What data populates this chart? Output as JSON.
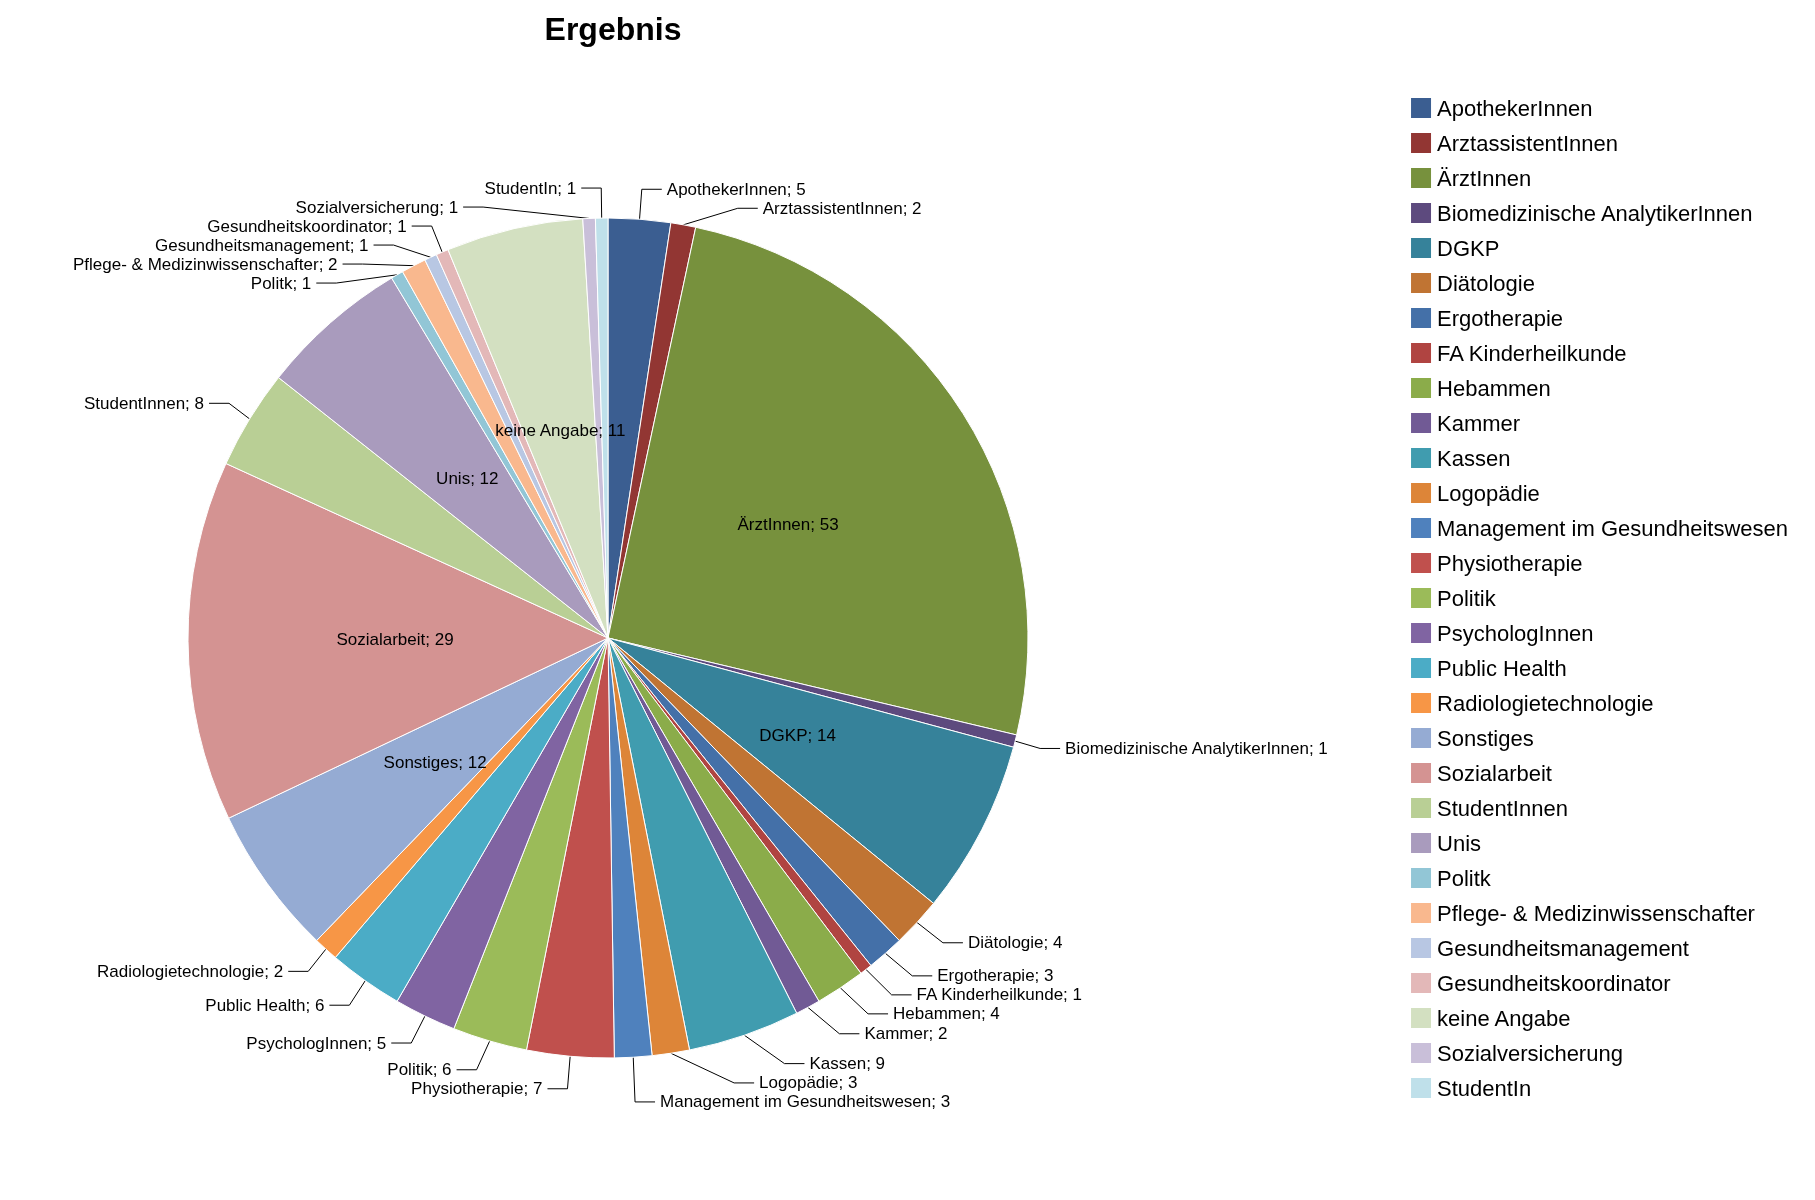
{
  "chart_data": {
    "type": "pie",
    "title": "Ergebnis",
    "legend": "right",
    "value_labels": [
      "ApothekerInnen; 5",
      "ArztassistentInnen; 2",
      "ÄrztInnen; 53",
      "Biomedizinische AnalytikerInnen; 1",
      "DGKP; 14",
      "Diätologie; 4",
      "Ergotherapie; 3",
      "FA Kinderheilkunde; 1",
      "Hebammen; 4",
      "Kammer; 2",
      "Kassen; 9",
      "Logopädie; 3",
      "Management im Gesundheitswesen; 3",
      "Physiotherapie; 7",
      "Politik; 6",
      "PsychologInnen; 5",
      "Public Health; 6",
      "Radiologietechnologie; 2",
      "Sonstiges; 12",
      "Sozialarbeit; 29",
      "StudentInnen; 8",
      "Unis; 12",
      "Politk; 1",
      "Pflege- & Medizinwissenschafter; 2",
      "Gesundheitsmanagement; 1",
      "Gesundheitskoordinator; 1",
      "keine Angabe; 11",
      "Sozialversicherung; 1",
      "StudentIn; 1"
    ],
    "categories": [
      "ApothekerInnen",
      "ArztassistentInnen",
      "ÄrztInnen",
      "Biomedizinische AnalytikerInnen",
      "DGKP",
      "Diätologie",
      "Ergotherapie",
      "FA Kinderheilkunde",
      "Hebammen",
      "Kammer",
      "Kassen",
      "Logopädie",
      "Management im Gesundheitswesen",
      "Physiotherapie",
      "Politik",
      "PsychologInnen",
      "Public Health",
      "Radiologietechnologie",
      "Sonstiges",
      "Sozialarbeit",
      "StudentInnen",
      "Unis",
      "Politk",
      "Pflege- & Medizinwissenschafter",
      "Gesundheitsmanagement",
      "Gesundheitskoordinator",
      "keine Angabe",
      "Sozialversicherung",
      "StudentIn"
    ],
    "values": [
      5,
      2,
      53,
      1,
      14,
      4,
      3,
      1,
      4,
      2,
      9,
      3,
      3,
      7,
      6,
      5,
      6,
      2,
      12,
      29,
      8,
      12,
      1,
      2,
      1,
      1,
      11,
      1,
      1
    ],
    "colors": [
      "#3b5e91",
      "#923633",
      "#77913d",
      "#5d4a7e",
      "#36829a",
      "#c07433",
      "#4470a8",
      "#b04441",
      "#8bac4a",
      "#715a95",
      "#409caf",
      "#dd8538",
      "#4f81bd",
      "#c0504d",
      "#9bbb59",
      "#8064a2",
      "#4bacc6",
      "#f79646",
      "#95abd3",
      "#d49392",
      "#b9cf95",
      "#a99bbd",
      "#92c6d6",
      "#f9b88e",
      "#b8c7e3",
      "#e3b8b8",
      "#d3e0c1",
      "#c9bfd9",
      "#bfe0ea"
    ]
  }
}
